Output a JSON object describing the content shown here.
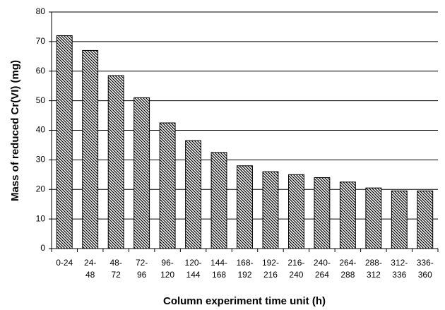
{
  "chart_data": {
    "type": "bar",
    "x_label": "Column experiment time unit (h)",
    "y_label": "Mass of reduced Cr(VI) (mg)",
    "categories": [
      "0-24",
      "24-48",
      "48-72",
      "72-96",
      "96-120",
      "120-144",
      "144-168",
      "168-192",
      "192-216",
      "216-240",
      "240-264",
      "264-288",
      "288-312",
      "312-336",
      "336-360"
    ],
    "values": [
      72,
      67,
      58.5,
      51,
      42.5,
      36.5,
      32.5,
      28,
      26,
      25,
      24,
      22.5,
      20.5,
      19.5,
      19.5
    ],
    "color": "#000000",
    "ylim": [
      0,
      80
    ],
    "yticks": [
      0,
      10,
      20,
      30,
      40,
      50,
      60,
      70,
      80
    ],
    "grid": true
  }
}
